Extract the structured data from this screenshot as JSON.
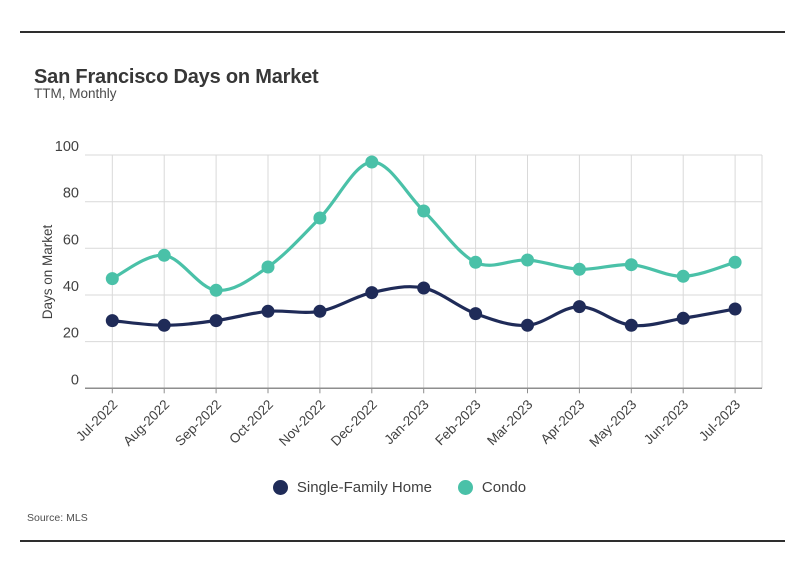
{
  "report": {
    "title": "San Francisco Days on Market",
    "subtitle": "TTM, Monthly",
    "source": "Source: MLS"
  },
  "chart_data": {
    "type": "line",
    "title": "San Francisco Days on Market",
    "subtitle": "TTM, Monthly",
    "xlabel": "",
    "ylabel": "Days on Market",
    "ylim": [
      0,
      100
    ],
    "yticks": [
      0,
      20,
      40,
      60,
      80,
      100
    ],
    "grid": true,
    "legend_position": "bottom",
    "marker": "circle",
    "categories": [
      "Jul-2022",
      "Aug-2022",
      "Sep-2022",
      "Oct-2022",
      "Nov-2022",
      "Dec-2022",
      "Jan-2023",
      "Feb-2023",
      "Mar-2023",
      "Apr-2023",
      "May-2023",
      "Jun-2023",
      "Jul-2023"
    ],
    "series": [
      {
        "name": "Single-Family Home",
        "color": "#1f2b58",
        "values": [
          29,
          27,
          29,
          33,
          33,
          41,
          43,
          32,
          27,
          35,
          27,
          30,
          34
        ]
      },
      {
        "name": "Condo",
        "color": "#4ac1a8",
        "values": [
          47,
          57,
          42,
          52,
          73,
          97,
          76,
          54,
          55,
          51,
          53,
          48,
          54
        ]
      }
    ]
  }
}
